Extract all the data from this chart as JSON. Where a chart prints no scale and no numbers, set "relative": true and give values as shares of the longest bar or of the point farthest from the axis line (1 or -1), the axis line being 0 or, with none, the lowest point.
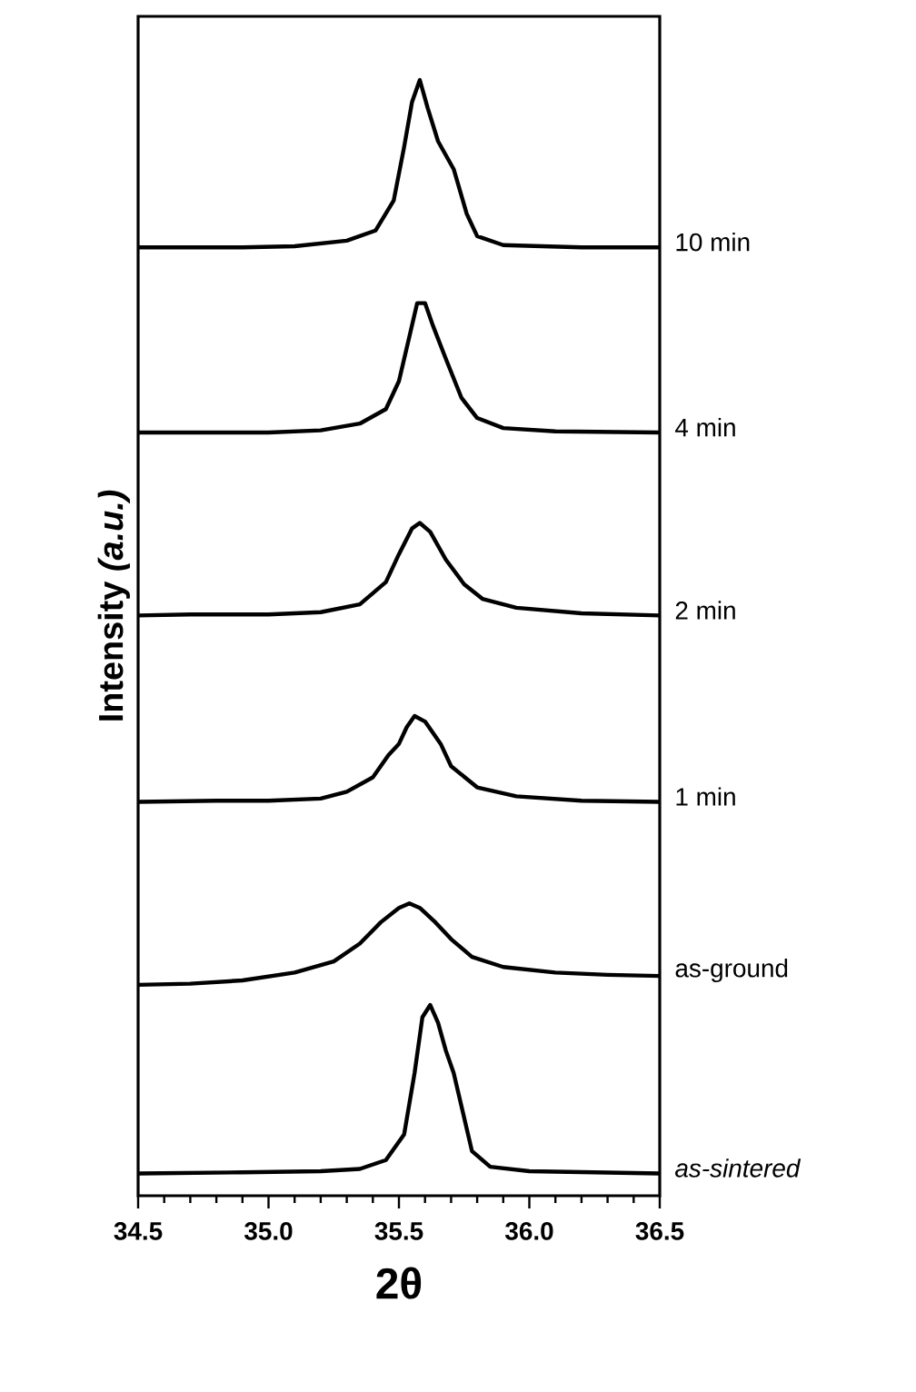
{
  "chart_data": {
    "type": "line",
    "relative": true,
    "xlabel": "2θ",
    "ylabel": "Intensity *(a.u.)*",
    "legend": false,
    "marker": "none",
    "line_style": "solid",
    "xlim": [
      34.5,
      36.5
    ],
    "xticks": [
      34.5,
      {
        "value": 35.0,
        "label": "35.0"
      },
      35.5,
      {
        "value": 36.0,
        "label": "36.0"
      },
      36.5
    ],
    "series": [
      {
        "name": "10 min",
        "color": "#000000",
        "x": [
          34.5,
          34.9,
          35.1,
          35.3,
          35.41,
          35.48,
          35.52,
          35.55,
          35.58,
          35.61,
          35.65,
          35.71,
          35.76,
          35.8,
          35.9,
          36.2,
          36.5
        ],
        "values": [
          0.85,
          0.85,
          0.851,
          0.856,
          0.865,
          0.892,
          0.94,
          0.98,
          1.0,
          0.975,
          0.945,
          0.92,
          0.88,
          0.86,
          0.852,
          0.85,
          0.85
        ]
      },
      {
        "name": "4 min",
        "color": "#000000",
        "x": [
          34.5,
          35.0,
          35.2,
          35.35,
          35.45,
          35.5,
          35.54,
          35.57,
          35.6,
          35.63,
          35.68,
          35.74,
          35.8,
          35.9,
          36.1,
          36.5
        ],
        "values": [
          0.684,
          0.684,
          0.686,
          0.692,
          0.705,
          0.73,
          0.77,
          0.8,
          0.8,
          0.78,
          0.75,
          0.715,
          0.697,
          0.688,
          0.685,
          0.684
        ]
      },
      {
        "name": "2 min",
        "color": "#000000",
        "x": [
          34.5,
          34.7,
          35.0,
          35.2,
          35.35,
          35.45,
          35.5,
          35.55,
          35.58,
          35.62,
          35.68,
          35.75,
          35.82,
          35.95,
          36.2,
          36.5
        ],
        "values": [
          0.52,
          0.521,
          0.521,
          0.523,
          0.53,
          0.55,
          0.575,
          0.598,
          0.603,
          0.595,
          0.57,
          0.548,
          0.535,
          0.527,
          0.522,
          0.52
        ]
      },
      {
        "name": "1 min",
        "color": "#000000",
        "x": [
          34.5,
          34.8,
          35.0,
          35.2,
          35.3,
          35.4,
          35.46,
          35.5,
          35.53,
          35.56,
          35.6,
          35.66,
          35.7,
          35.8,
          35.95,
          36.2,
          36.5
        ],
        "values": [
          0.353,
          0.354,
          0.354,
          0.356,
          0.362,
          0.375,
          0.395,
          0.405,
          0.42,
          0.43,
          0.425,
          0.405,
          0.385,
          0.366,
          0.358,
          0.354,
          0.353
        ]
      },
      {
        "name": "as-ground",
        "color": "#000000",
        "x": [
          34.5,
          34.7,
          34.9,
          35.1,
          35.25,
          35.35,
          35.43,
          35.5,
          35.54,
          35.58,
          35.64,
          35.7,
          35.78,
          35.9,
          36.1,
          36.3,
          36.5
        ],
        "values": [
          0.189,
          0.19,
          0.193,
          0.2,
          0.21,
          0.226,
          0.245,
          0.258,
          0.262,
          0.258,
          0.245,
          0.23,
          0.214,
          0.205,
          0.2,
          0.198,
          0.197
        ]
      },
      {
        "name": "*as-sintered*",
        "color": "#000000",
        "x": [
          34.5,
          34.9,
          35.2,
          35.35,
          35.45,
          35.52,
          35.56,
          35.59,
          35.62,
          35.65,
          35.68,
          35.71,
          35.74,
          35.78,
          35.85,
          36.0,
          36.5
        ],
        "values": [
          0.02,
          0.021,
          0.022,
          0.024,
          0.032,
          0.055,
          0.11,
          0.16,
          0.171,
          0.155,
          0.13,
          0.11,
          0.08,
          0.04,
          0.026,
          0.022,
          0.02
        ]
      }
    ]
  }
}
